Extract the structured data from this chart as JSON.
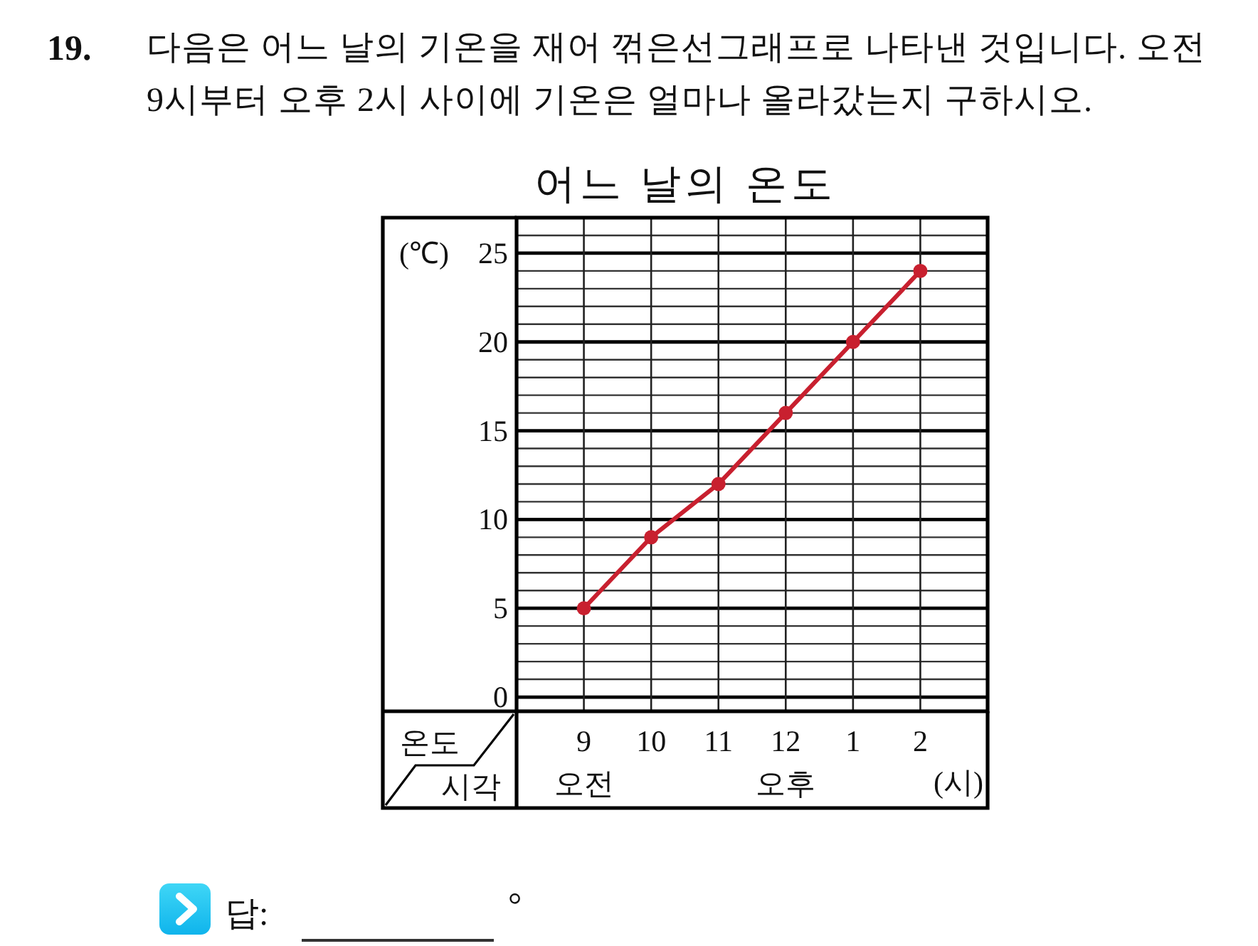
{
  "chart_data": {
    "type": "line",
    "title": "어느 날의 온도",
    "ylabel": "(℃)",
    "xlabel": "(시)",
    "categories": [
      "9",
      "10",
      "11",
      "12",
      "1",
      "2"
    ],
    "series": [
      {
        "color": "#c8202f",
        "values": [
          5,
          9,
          12,
          16,
          20,
          24
        ]
      }
    ],
    "ylim": [
      -0.8,
      27
    ],
    "yticks": [
      0,
      {
        "value": 1,
        "label": null
      },
      {
        "value": 2,
        "label": null
      },
      {
        "value": 3,
        "label": null
      },
      {
        "value": 4,
        "label": null
      },
      5,
      {
        "value": 6,
        "label": null
      },
      {
        "value": 7,
        "label": null
      },
      {
        "value": 8,
        "label": null
      },
      {
        "value": 9,
        "label": null
      },
      10,
      {
        "value": 11,
        "label": null
      },
      {
        "value": 12,
        "label": null
      },
      {
        "value": 13,
        "label": null
      },
      {
        "value": 14,
        "label": null
      },
      15,
      {
        "value": 16,
        "label": null
      },
      {
        "value": 17,
        "label": null
      },
      {
        "value": 18,
        "label": null
      },
      {
        "value": 19,
        "label": null
      },
      20,
      {
        "value": 21,
        "label": null
      },
      {
        "value": 22,
        "label": null
      },
      {
        "value": 23,
        "label": null
      },
      {
        "value": 24,
        "label": null
      },
      25,
      {
        "value": 26,
        "label": null
      }
    ],
    "grid": true,
    "marker": "circle",
    "line_style": "solid",
    "annotations": [
      "19.",
      "다음은 어느 날의 기온을 재어 꺾은선그래프로 나타낸 것입니다. 오전 9시부터 오후 2시 사이에 기온은 얼마나 올라갔는지 구하시오.",
      "온도",
      "시각",
      "오전",
      "오후",
      "답:",
      "°"
    ]
  }
}
